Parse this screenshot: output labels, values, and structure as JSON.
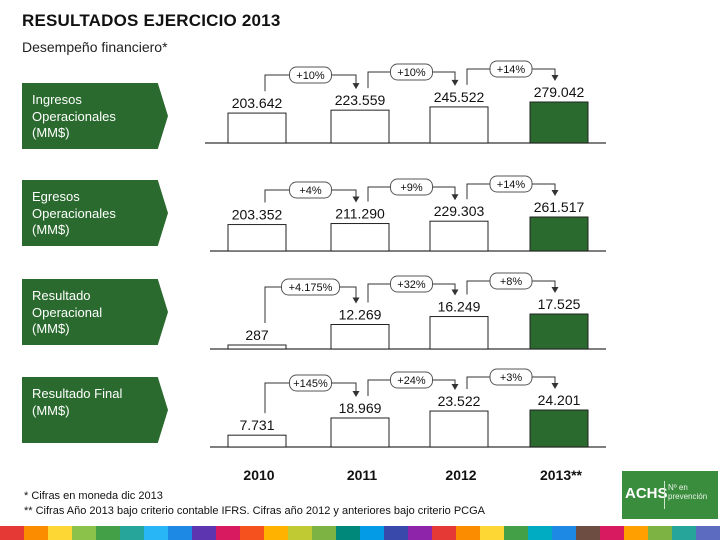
{
  "header": {
    "title": "RESULTADOS EJERCICIO 2013",
    "subtitle": "Desempeño financiero*"
  },
  "chart_data": {
    "type": "bar",
    "categories": [
      "2010",
      "2011",
      "2012",
      "2013**"
    ],
    "rows": [
      {
        "label": "Ingresos\nOperacionales\n(MM$)",
        "values": [
          203642,
          223559,
          245522,
          279042
        ],
        "value_labels": [
          "203.642",
          "223.559",
          "245.522",
          "279.042"
        ],
        "growth": [
          "+10%",
          "+10%",
          "+14%"
        ]
      },
      {
        "label": "Egresos\nOperacionales\n(MM$)",
        "values": [
          203352,
          211290,
          229303,
          261517
        ],
        "value_labels": [
          "203.352",
          "211.290",
          "229.303",
          "261.517"
        ],
        "growth": [
          "+4%",
          "+9%",
          "+14%"
        ]
      },
      {
        "label": "Resultado\nOperacional\n(MM$)",
        "values": [
          287,
          12269,
          16249,
          17525
        ],
        "value_labels": [
          "287",
          "12.269",
          "16.249",
          "17.525"
        ],
        "growth": [
          "+4.175%",
          "+32%",
          "+8%"
        ]
      },
      {
        "label": "Resultado  Final\n(MM$)",
        "values": [
          7731,
          18969,
          23522,
          24201
        ],
        "value_labels": [
          "7.731",
          "18.969",
          "23.522",
          "24.201"
        ],
        "growth": [
          "+145%",
          "+24%",
          "+3%"
        ]
      }
    ],
    "highlight_color": "#2a6a2e",
    "bar_color": "#ffffff"
  },
  "footnotes": [
    "*  Cifras en moneda dic 2013",
    "** Cifras Año 2013 bajo criterio contable IFRS. Cifras año 2012 y anteriores bajo criterio PCGA"
  ],
  "logo": {
    "brand": "ACHS",
    "tagline": "Nº en\nprevención"
  },
  "strip_colors": [
    "#e53935",
    "#fb8c00",
    "#fdd835",
    "#8bc34a",
    "#43a047",
    "#26a69a",
    "#29b6f6",
    "#1e88e5",
    "#5e35b1",
    "#d81b60",
    "#f4511e",
    "#ffb300",
    "#c0ca33",
    "#7cb342",
    "#00897b",
    "#039be5",
    "#3949ab",
    "#8e24aa",
    "#e53935",
    "#fb8c00",
    "#fdd835",
    "#43a047",
    "#00acc1",
    "#1e88e5",
    "#6d4c41",
    "#d81b60",
    "#ffa000",
    "#7cb342",
    "#26a69a",
    "#5c6bc0"
  ]
}
